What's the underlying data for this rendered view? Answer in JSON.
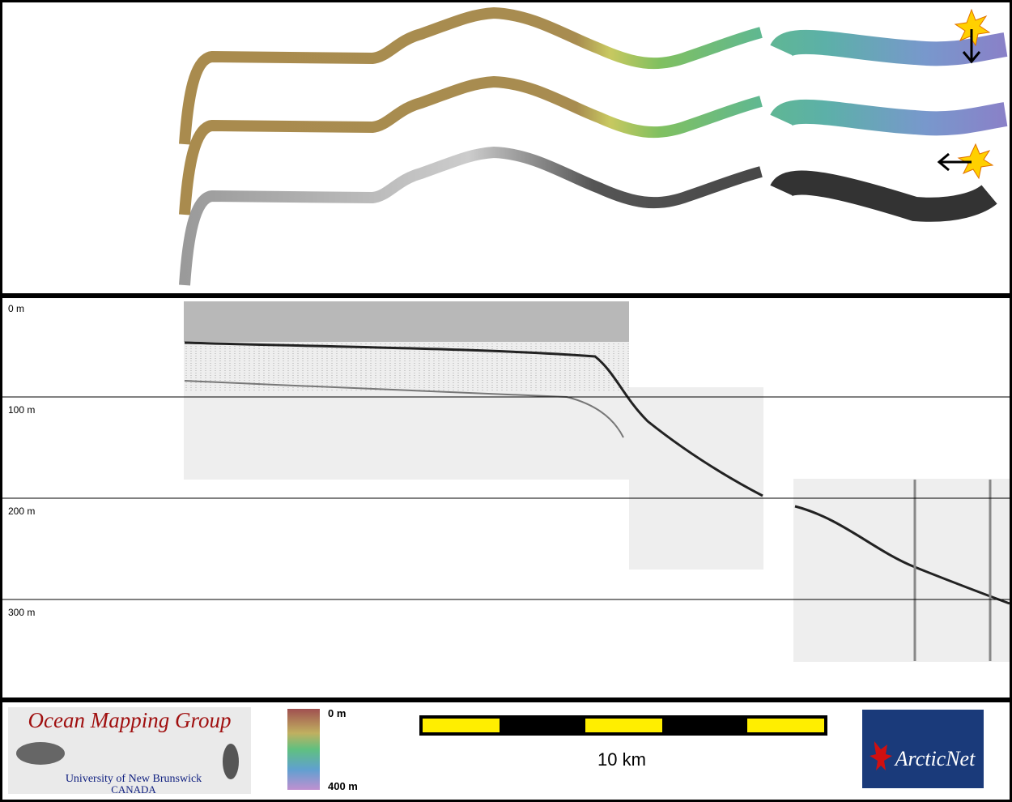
{
  "profile": {
    "depth_labels": [
      "0 m",
      "100 m",
      "200 m",
      "300 m"
    ]
  },
  "legend": {
    "color_scale": {
      "top": "0 m",
      "bottom": "400 m"
    },
    "scale_bar": "10 km"
  },
  "logos": {
    "omg": {
      "title": "Ocean Mapping Group",
      "subtitle": "University of New Brunswick",
      "country": "CANADA"
    },
    "arcticnet": "ArcticNet"
  }
}
